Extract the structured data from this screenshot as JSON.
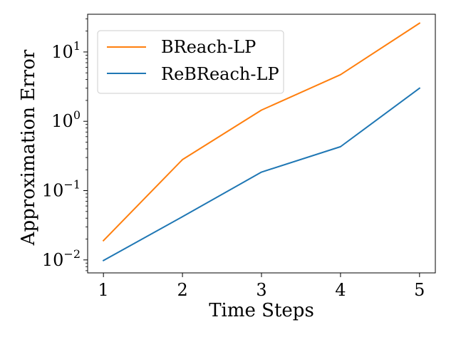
{
  "chart_data": {
    "type": "line",
    "xlabel": "Time Steps",
    "ylabel": "Approximation Error",
    "y_scale": "log",
    "x": [
      1,
      2,
      3,
      4,
      5
    ],
    "xlim": [
      0.8,
      5.2
    ],
    "ylim": [
      0.0065,
      35
    ],
    "x_ticks": [
      "1",
      "2",
      "3",
      "4",
      "5"
    ],
    "y_ticks": [
      {
        "value": 0.01,
        "base": "10",
        "exp": "−2"
      },
      {
        "value": 0.1,
        "base": "10",
        "exp": "−1"
      },
      {
        "value": 1,
        "base": "10",
        "exp": "0"
      },
      {
        "value": 10,
        "base": "10",
        "exp": "1"
      }
    ],
    "grid": false,
    "legend_position": "top-left",
    "series": [
      {
        "name": "BReach-LP",
        "color": "#ff7f0e",
        "values": [
          0.019,
          0.28,
          1.45,
          4.7,
          26
        ]
      },
      {
        "name": "ReBReach-LP",
        "color": "#1f77b4",
        "values": [
          0.0098,
          0.042,
          0.185,
          0.43,
          3.0
        ]
      }
    ]
  }
}
